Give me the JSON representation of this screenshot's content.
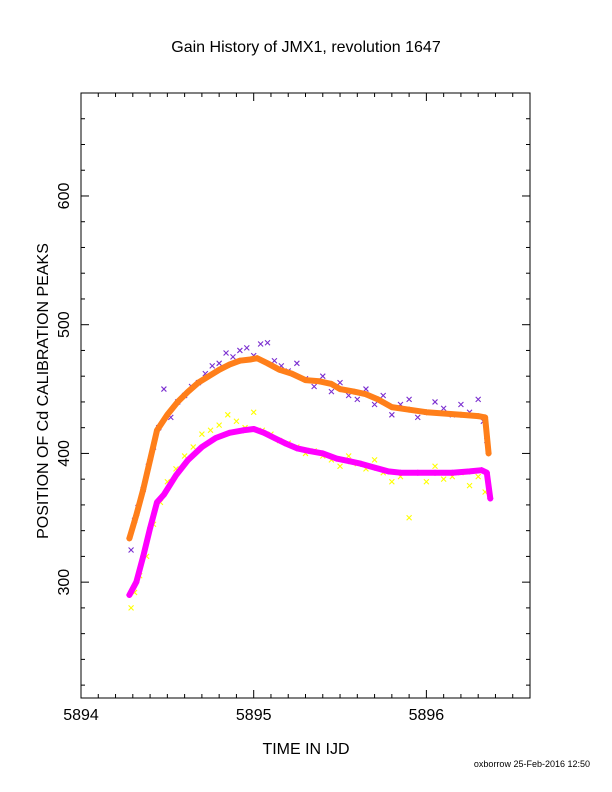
{
  "footer": "oxborrow 25-Feb-2016 12:50",
  "chart_data": {
    "type": "scatter",
    "title": "Gain History of JMX1, revolution 1647",
    "xlabel": "TIME IN IJD",
    "ylabel": "POSITION OF Cd CALIBRATION PEAKS",
    "xlim": [
      5894.0,
      5896.6
    ],
    "ylim": [
      210,
      680
    ],
    "xticks": [
      5894,
      5895,
      5896
    ],
    "yticks": [
      300,
      400,
      500,
      600
    ],
    "grid": false,
    "legend": "none",
    "colors": {
      "upper_points": "#7b2fd0",
      "upper_fit": "#ff7f1a",
      "lower_points": "#ffff00",
      "lower_fit": "#ff00ff"
    },
    "series": [
      {
        "kind": "points",
        "color": "#7b2fd0",
        "x": [
          5894.29,
          5894.31,
          5894.33,
          5894.36,
          5894.39,
          5894.42,
          5894.45,
          5894.48,
          5894.52,
          5894.56,
          5894.6,
          5894.64,
          5894.68,
          5894.72,
          5894.76,
          5894.8,
          5894.84,
          5894.88,
          5894.92,
          5894.96,
          5895.0,
          5895.04,
          5895.08,
          5895.12,
          5895.16,
          5895.2,
          5895.25,
          5895.3,
          5895.35,
          5895.4,
          5895.45,
          5895.5,
          5895.55,
          5895.6,
          5895.65,
          5895.7,
          5895.75,
          5895.8,
          5895.85,
          5895.9,
          5895.95,
          5896.0,
          5896.05,
          5896.1,
          5896.15,
          5896.2,
          5896.25,
          5896.3,
          5896.33,
          5896.35
        ],
        "y": [
          325,
          348,
          358,
          372,
          390,
          405,
          420,
          450,
          428,
          440,
          445,
          452,
          455,
          462,
          468,
          470,
          478,
          475,
          480,
          482,
          476,
          485,
          486,
          472,
          468,
          464,
          470,
          458,
          452,
          460,
          448,
          455,
          445,
          442,
          450,
          438,
          445,
          430,
          438,
          442,
          428,
          432,
          440,
          435,
          430,
          438,
          432,
          442,
          425,
          410
        ]
      },
      {
        "kind": "fit",
        "color": "#ff7f1a",
        "x": [
          5894.28,
          5894.32,
          5894.36,
          5894.4,
          5894.44,
          5894.5,
          5894.56,
          5894.62,
          5894.68,
          5894.74,
          5894.8,
          5894.86,
          5894.92,
          5894.98,
          5895.02,
          5895.08,
          5895.15,
          5895.22,
          5895.3,
          5895.38,
          5895.45,
          5895.5,
          5895.58,
          5895.65,
          5895.72,
          5895.8,
          5895.9,
          5896.0,
          5896.1,
          5896.2,
          5896.3,
          5896.34,
          5896.36
        ],
        "y": [
          334,
          352,
          372,
          395,
          418,
          430,
          440,
          448,
          455,
          460,
          465,
          469,
          472,
          473,
          474,
          470,
          465,
          462,
          457,
          456,
          454,
          450,
          448,
          446,
          442,
          436,
          434,
          432,
          431,
          430,
          429,
          428,
          400
        ]
      },
      {
        "kind": "points",
        "color": "#ffff00",
        "x": [
          5894.29,
          5894.31,
          5894.34,
          5894.38,
          5894.42,
          5894.46,
          5894.5,
          5894.55,
          5894.6,
          5894.65,
          5894.7,
          5894.75,
          5894.8,
          5894.85,
          5894.9,
          5894.95,
          5895.0,
          5895.05,
          5895.1,
          5895.15,
          5895.2,
          5895.25,
          5895.3,
          5895.35,
          5895.4,
          5895.45,
          5895.5,
          5895.55,
          5895.6,
          5895.65,
          5895.7,
          5895.75,
          5895.8,
          5895.85,
          5895.9,
          5895.95,
          5896.0,
          5896.05,
          5896.1,
          5896.15,
          5896.2,
          5896.25,
          5896.3,
          5896.34
        ],
        "y": [
          280,
          292,
          305,
          320,
          345,
          362,
          378,
          388,
          398,
          405,
          415,
          418,
          422,
          430,
          425,
          420,
          432,
          418,
          415,
          410,
          408,
          405,
          400,
          402,
          398,
          395,
          390,
          398,
          392,
          388,
          395,
          385,
          378,
          382,
          350,
          385,
          378,
          390,
          380,
          382,
          385,
          375,
          382,
          370
        ]
      },
      {
        "kind": "fit",
        "color": "#ff00ff",
        "x": [
          5894.28,
          5894.32,
          5894.36,
          5894.4,
          5894.44,
          5894.48,
          5894.55,
          5894.62,
          5894.7,
          5894.78,
          5894.86,
          5894.94,
          5895.0,
          5895.06,
          5895.12,
          5895.18,
          5895.25,
          5895.32,
          5895.4,
          5895.48,
          5895.55,
          5895.62,
          5895.7,
          5895.78,
          5895.85,
          5895.95,
          5896.05,
          5896.15,
          5896.25,
          5896.32,
          5896.35,
          5896.37
        ],
        "y": [
          290,
          300,
          320,
          342,
          362,
          368,
          383,
          395,
          405,
          412,
          416,
          418,
          419,
          416,
          412,
          408,
          404,
          402,
          400,
          396,
          394,
          392,
          389,
          386,
          385,
          385,
          385,
          385,
          386,
          387,
          385,
          365
        ]
      }
    ]
  }
}
